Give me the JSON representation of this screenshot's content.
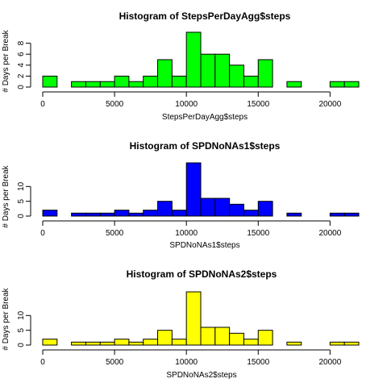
{
  "chart_data": [
    {
      "type": "bar",
      "title": "Histogram of StepsPerDayAgg$steps",
      "xlabel": "StepsPerDayAgg$steps",
      "ylabel": "# Days per Break",
      "bin_width": 1000,
      "x": [
        0,
        1000,
        2000,
        3000,
        4000,
        5000,
        6000,
        7000,
        8000,
        9000,
        10000,
        11000,
        12000,
        13000,
        14000,
        15000,
        16000,
        17000,
        18000,
        19000,
        20000,
        21000
      ],
      "values": [
        2,
        0,
        1,
        1,
        1,
        2,
        1,
        2,
        5,
        2,
        10,
        6,
        6,
        4,
        2,
        5,
        0,
        1,
        0,
        0,
        1,
        1
      ],
      "xticks": [
        0,
        5000,
        10000,
        15000,
        20000
      ],
      "yticks": [
        0,
        2,
        4,
        6,
        8
      ],
      "xlim": [
        0,
        22000
      ],
      "ylim": [
        0,
        10
      ],
      "fill": "#00ff00"
    },
    {
      "type": "bar",
      "title": "Histogram of SPDNoNAs1$steps",
      "xlabel": "SPDNoNAs1$steps",
      "ylabel": "# Days per Break",
      "bin_width": 1000,
      "x": [
        0,
        1000,
        2000,
        3000,
        4000,
        5000,
        6000,
        7000,
        8000,
        9000,
        10000,
        11000,
        12000,
        13000,
        14000,
        15000,
        16000,
        17000,
        18000,
        19000,
        20000,
        21000
      ],
      "values": [
        2,
        0,
        1,
        1,
        1,
        2,
        1,
        2,
        5,
        2,
        18,
        6,
        6,
        4,
        2,
        5,
        0,
        1,
        0,
        0,
        1,
        1
      ],
      "xticks": [
        0,
        5000,
        10000,
        15000,
        20000
      ],
      "yticks": [
        0,
        5,
        10
      ],
      "xlim": [
        0,
        22000
      ],
      "ylim": [
        0,
        18
      ],
      "fill": "#0000ff"
    },
    {
      "type": "bar",
      "title": "Histogram of SPDNoNAs2$steps",
      "xlabel": "SPDNoNAs2$steps",
      "ylabel": "# Days per Break",
      "bin_width": 1000,
      "x": [
        0,
        1000,
        2000,
        3000,
        4000,
        5000,
        6000,
        7000,
        8000,
        9000,
        10000,
        11000,
        12000,
        13000,
        14000,
        15000,
        16000,
        17000,
        18000,
        19000,
        20000,
        21000
      ],
      "values": [
        2,
        0,
        1,
        1,
        1,
        2,
        1,
        2,
        5,
        2,
        18,
        6,
        6,
        4,
        2,
        5,
        0,
        1,
        0,
        0,
        1,
        1
      ],
      "xticks": [
        0,
        5000,
        10000,
        15000,
        20000
      ],
      "yticks": [
        0,
        5,
        10
      ],
      "xlim": [
        0,
        22000
      ],
      "ylim": [
        0,
        18
      ],
      "fill": "#ffff00"
    }
  ]
}
